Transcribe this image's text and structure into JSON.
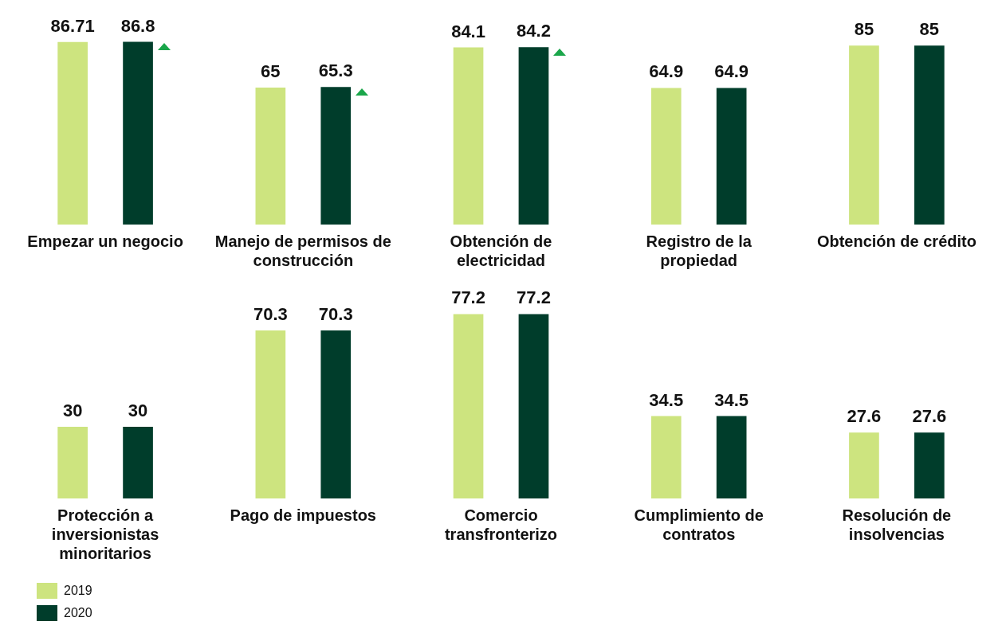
{
  "chart_data": [
    {
      "type": "bar",
      "categories": [
        "Empezar un negocio",
        "Manejo de permisos de construcción",
        "Obtención de electricidad",
        "Registro de la propiedad",
        "Obtención de crédito"
      ],
      "data_labels": true,
      "legend": "bottom left",
      "series": [
        {
          "name": "2019",
          "color": "#cde47f",
          "values": [
            86.71,
            65,
            84.1,
            64.9,
            85
          ]
        },
        {
          "name": "2020",
          "color": "#003d2b",
          "values": [
            86.8,
            65.3,
            84.2,
            64.9,
            85
          ]
        }
      ]
    },
    {
      "type": "bar",
      "categories": [
        "Protección a inversionistas minoritarios",
        "Pago de impuestos",
        "Comercio transfronterizo",
        "Cumplimiento de contratos",
        "Resolución de insolvencias"
      ],
      "data_labels": true,
      "legend": "bottom left",
      "series": [
        {
          "name": "2019",
          "color": "#cde47f",
          "values": [
            30,
            70.3,
            77.2,
            34.5,
            27.6
          ]
        },
        {
          "name": "2020",
          "color": "#003d2b",
          "values": [
            30,
            70.3,
            77.2,
            34.5,
            27.6
          ]
        }
      ]
    }
  ]
}
